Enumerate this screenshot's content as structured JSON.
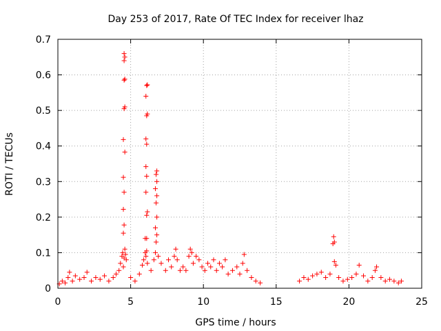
{
  "chart_data": {
    "type": "scatter",
    "title": "Day 253 of 2017, Rate Of TEC Index for receiver lhaz",
    "xlabel": "GPS time / hours",
    "ylabel": "ROTI / TECUs",
    "xlim": [
      0,
      25
    ],
    "ylim": [
      0,
      0.7
    ],
    "x_ticks": [
      "0",
      "5",
      "10",
      "15",
      "20",
      "25"
    ],
    "y_ticks": [
      "0",
      "0.1",
      "0.2",
      "0.3",
      "0.4",
      "0.5",
      "0.6",
      "0.7"
    ],
    "grid": true,
    "legend": "none",
    "marker": "+",
    "color": "#ff0000",
    "series": [
      {
        "points": [
          [
            0.1,
            0.012
          ],
          [
            0.3,
            0.02
          ],
          [
            0.5,
            0.015
          ],
          [
            0.7,
            0.03
          ],
          [
            0.8,
            0.045
          ],
          [
            1.0,
            0.02
          ],
          [
            1.2,
            0.035
          ],
          [
            1.5,
            0.025
          ],
          [
            1.8,
            0.03
          ],
          [
            2.0,
            0.045
          ],
          [
            2.3,
            0.02
          ],
          [
            2.6,
            0.03
          ],
          [
            2.9,
            0.025
          ],
          [
            3.2,
            0.035
          ],
          [
            3.5,
            0.02
          ],
          [
            3.8,
            0.03
          ],
          [
            4.0,
            0.04
          ],
          [
            4.2,
            0.05
          ],
          [
            4.3,
            0.07
          ],
          [
            4.4,
            0.09
          ],
          [
            4.45,
            0.1
          ],
          [
            4.5,
            0.06
          ],
          [
            4.55,
            0.085
          ],
          [
            4.6,
            0.11
          ],
          [
            4.65,
            0.095
          ],
          [
            4.7,
            0.08
          ],
          [
            4.5,
            0.155
          ],
          [
            4.55,
            0.178
          ],
          [
            4.5,
            0.222
          ],
          [
            4.55,
            0.27
          ],
          [
            4.5,
            0.312
          ],
          [
            4.6,
            0.383
          ],
          [
            4.5,
            0.418
          ],
          [
            4.55,
            0.505
          ],
          [
            4.6,
            0.51
          ],
          [
            4.55,
            0.585
          ],
          [
            4.6,
            0.588
          ],
          [
            4.55,
            0.64
          ],
          [
            4.6,
            0.65
          ],
          [
            4.55,
            0.66
          ],
          [
            5.0,
            0.03
          ],
          [
            5.3,
            0.02
          ],
          [
            5.6,
            0.04
          ],
          [
            5.8,
            0.065
          ],
          [
            5.9,
            0.08
          ],
          [
            6.0,
            0.1
          ],
          [
            6.05,
            0.09
          ],
          [
            6.1,
            0.105
          ],
          [
            6.15,
            0.07
          ],
          [
            6.0,
            0.14
          ],
          [
            6.1,
            0.14
          ],
          [
            6.1,
            0.205
          ],
          [
            6.15,
            0.215
          ],
          [
            6.05,
            0.27
          ],
          [
            6.1,
            0.315
          ],
          [
            6.05,
            0.342
          ],
          [
            6.1,
            0.405
          ],
          [
            6.05,
            0.42
          ],
          [
            6.1,
            0.485
          ],
          [
            6.15,
            0.49
          ],
          [
            6.05,
            0.54
          ],
          [
            6.1,
            0.57
          ],
          [
            6.15,
            0.572
          ],
          [
            6.4,
            0.05
          ],
          [
            6.6,
            0.08
          ],
          [
            6.7,
            0.1
          ],
          [
            6.75,
            0.13
          ],
          [
            6.8,
            0.15
          ],
          [
            6.7,
            0.17
          ],
          [
            6.8,
            0.2
          ],
          [
            6.75,
            0.24
          ],
          [
            6.8,
            0.26
          ],
          [
            6.7,
            0.28
          ],
          [
            6.8,
            0.3
          ],
          [
            6.75,
            0.32
          ],
          [
            6.8,
            0.33
          ],
          [
            6.9,
            0.09
          ],
          [
            7.1,
            0.07
          ],
          [
            7.4,
            0.05
          ],
          [
            7.6,
            0.08
          ],
          [
            7.8,
            0.06
          ],
          [
            8.0,
            0.09
          ],
          [
            8.1,
            0.11
          ],
          [
            8.2,
            0.08
          ],
          [
            8.4,
            0.05
          ],
          [
            8.6,
            0.06
          ],
          [
            8.8,
            0.05
          ],
          [
            9.0,
            0.09
          ],
          [
            9.1,
            0.11
          ],
          [
            9.2,
            0.1
          ],
          [
            9.3,
            0.07
          ],
          [
            9.5,
            0.09
          ],
          [
            9.7,
            0.08
          ],
          [
            9.9,
            0.06
          ],
          [
            10.1,
            0.05
          ],
          [
            10.3,
            0.07
          ],
          [
            10.5,
            0.06
          ],
          [
            10.7,
            0.08
          ],
          [
            10.9,
            0.05
          ],
          [
            11.1,
            0.07
          ],
          [
            11.3,
            0.06
          ],
          [
            11.5,
            0.08
          ],
          [
            11.7,
            0.04
          ],
          [
            12.0,
            0.05
          ],
          [
            12.3,
            0.06
          ],
          [
            12.5,
            0.04
          ],
          [
            12.7,
            0.07
          ],
          [
            12.8,
            0.095
          ],
          [
            13.0,
            0.05
          ],
          [
            13.3,
            0.03
          ],
          [
            13.6,
            0.02
          ],
          [
            13.9,
            0.015
          ],
          [
            16.6,
            0.02
          ],
          [
            16.9,
            0.03
          ],
          [
            17.2,
            0.025
          ],
          [
            17.5,
            0.035
          ],
          [
            17.8,
            0.04
          ],
          [
            18.1,
            0.045
          ],
          [
            18.4,
            0.03
          ],
          [
            18.7,
            0.04
          ],
          [
            18.9,
            0.125
          ],
          [
            18.95,
            0.145
          ],
          [
            19.0,
            0.13
          ],
          [
            19.0,
            0.075
          ],
          [
            19.1,
            0.065
          ],
          [
            19.3,
            0.03
          ],
          [
            19.6,
            0.02
          ],
          [
            19.9,
            0.025
          ],
          [
            20.2,
            0.03
          ],
          [
            20.5,
            0.04
          ],
          [
            20.7,
            0.065
          ],
          [
            21.0,
            0.035
          ],
          [
            21.3,
            0.02
          ],
          [
            21.6,
            0.03
          ],
          [
            21.8,
            0.05
          ],
          [
            21.9,
            0.06
          ],
          [
            22.2,
            0.03
          ],
          [
            22.5,
            0.02
          ],
          [
            22.8,
            0.025
          ],
          [
            23.1,
            0.02
          ],
          [
            23.4,
            0.015
          ],
          [
            23.6,
            0.02
          ]
        ]
      }
    ]
  }
}
